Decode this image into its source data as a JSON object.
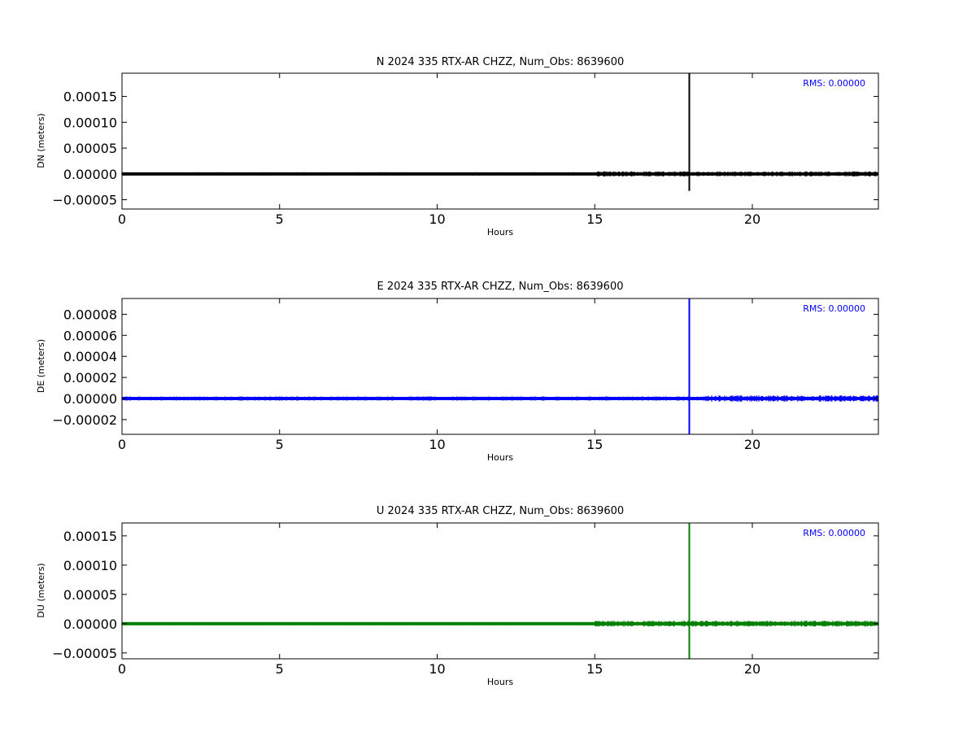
{
  "chart_data": [
    {
      "type": "line",
      "title": "N 2024 335 RTX-AR  CHZZ, Num_Obs: 8639600",
      "xlabel": "Hours",
      "ylabel": "DN (meters)",
      "xlim": [
        0,
        24
      ],
      "ylim": [
        -6.8e-05,
        0.000195
      ],
      "x_ticks": [
        0,
        5,
        10,
        15,
        20
      ],
      "y_ticks": [
        -5e-05,
        0.0,
        5e-05,
        0.0001,
        0.00015
      ],
      "y_tick_labels": [
        "−0.00005",
        "0.00000",
        "0.00005",
        "0.00010",
        "0.00015"
      ],
      "color": "#000000",
      "rms_label": "RMS:  0.00000",
      "rms_color": "#0000ff",
      "baseline": 0.0,
      "noise_amplitude": [
        {
          "x": [
            0,
            15
          ],
          "amplitude": 3e-06
        },
        {
          "x": [
            15,
            24
          ],
          "amplitude": 5e-06
        }
      ],
      "spike": {
        "x": 18.0,
        "min": -3.3e-05,
        "max": 0.000195
      },
      "grid": false
    },
    {
      "type": "line",
      "title": "E 2024 335 RTX-AR  CHZZ, Num_Obs: 8639600",
      "xlabel": "Hours",
      "ylabel": "DE (meters)",
      "xlim": [
        0,
        24
      ],
      "ylim": [
        -3.4e-05,
        9.5e-05
      ],
      "x_ticks": [
        0,
        5,
        10,
        15,
        20
      ],
      "y_ticks": [
        -2e-05,
        0.0,
        2e-05,
        4e-05,
        6e-05,
        8e-05
      ],
      "y_tick_labels": [
        "−0.00002",
        "0.00000",
        "0.00002",
        "0.00004",
        "0.00006",
        "0.00008"
      ],
      "color": "#0000ff",
      "rms_label": "RMS:  0.00000",
      "rms_color": "#0000ff",
      "baseline": 0.0,
      "noise_amplitude": [
        {
          "x": [
            0,
            18.5
          ],
          "amplitude": 2e-06
        },
        {
          "x": [
            18.5,
            24
          ],
          "amplitude": 3e-06
        }
      ],
      "spike": {
        "x": 18.0,
        "min": -3.4e-05,
        "max": 9.5e-05
      },
      "grid": false
    },
    {
      "type": "line",
      "title": "U 2024 335 RTX-AR  CHZZ, Num_Obs: 8639600",
      "xlabel": "Hours",
      "ylabel": "DU (meters)",
      "xlim": [
        0,
        24
      ],
      "ylim": [
        -6e-05,
        0.000172
      ],
      "x_ticks": [
        0,
        5,
        10,
        15,
        20
      ],
      "y_ticks": [
        -5e-05,
        0.0,
        5e-05,
        0.0001,
        0.00015
      ],
      "y_tick_labels": [
        "−0.00005",
        "0.00000",
        "0.00005",
        "0.00010",
        "0.00015"
      ],
      "color": "#008000",
      "rms_label": "RMS:  0.00000",
      "rms_color": "#0000ff",
      "baseline": 0.0,
      "noise_amplitude": [
        {
          "x": [
            0,
            15
          ],
          "amplitude": 2.5e-06
        },
        {
          "x": [
            15,
            24
          ],
          "amplitude": 5e-06
        }
      ],
      "spike": {
        "x": 18.0,
        "min": -6e-05,
        "max": 0.000172
      },
      "grid": false
    }
  ]
}
